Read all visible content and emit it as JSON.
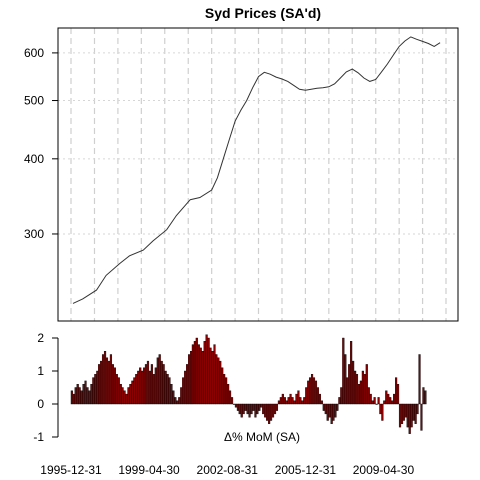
{
  "chart_data": [
    {
      "type": "line",
      "title": "Syd Prices (SA'd)",
      "xlabel": "",
      "ylabel": "",
      "y_scale": "log",
      "ylim": [
        215,
        660
      ],
      "xlim": [
        "1995-12-31",
        "2011-12-31"
      ],
      "y_ticks": [
        300,
        400,
        500,
        600
      ],
      "grid": true,
      "x_grid_dates": [
        "1995-12-31",
        "1996-12-31",
        "1997-12-31",
        "1998-12-31",
        "1999-12-31",
        "2000-12-31",
        "2001-12-31",
        "2002-12-31",
        "2003-12-31",
        "2004-12-31",
        "2005-12-31",
        "2006-12-31",
        "2007-12-31",
        "2008-12-31",
        "2009-12-31",
        "2010-12-31",
        "2011-12-31"
      ],
      "series": [
        {
          "color": "#333333",
          "points": [
            [
              "1996-01-31",
              230
            ],
            [
              "1996-06-30",
              234
            ],
            [
              "1997-01-31",
              242
            ],
            [
              "1997-06-30",
              256
            ],
            [
              "1998-01-31",
              268
            ],
            [
              "1998-06-30",
              276
            ],
            [
              "1999-01-31",
              282
            ],
            [
              "1999-06-30",
              292
            ],
            [
              "2000-01-31",
              305
            ],
            [
              "2000-06-30",
              322
            ],
            [
              "2001-01-31",
              342
            ],
            [
              "2001-06-30",
              345
            ],
            [
              "2001-12-31",
              355
            ],
            [
              "2002-03-31",
              372
            ],
            [
              "2002-06-30",
              400
            ],
            [
              "2002-09-30",
              430
            ],
            [
              "2002-12-31",
              462
            ],
            [
              "2003-03-31",
              482
            ],
            [
              "2003-06-30",
              500
            ],
            [
              "2003-09-30",
              525
            ],
            [
              "2003-12-31",
              548
            ],
            [
              "2004-03-31",
              557
            ],
            [
              "2004-06-30",
              553
            ],
            [
              "2004-09-30",
              547
            ],
            [
              "2004-12-31",
              543
            ],
            [
              "2005-03-31",
              538
            ],
            [
              "2005-06-30",
              530
            ],
            [
              "2005-09-30",
              522
            ],
            [
              "2005-12-31",
              520
            ],
            [
              "2006-03-31",
              522
            ],
            [
              "2006-06-30",
              524
            ],
            [
              "2006-09-30",
              525
            ],
            [
              "2006-12-31",
              527
            ],
            [
              "2007-03-31",
              533
            ],
            [
              "2007-06-30",
              545
            ],
            [
              "2007-09-30",
              558
            ],
            [
              "2007-12-31",
              564
            ],
            [
              "2008-03-31",
              556
            ],
            [
              "2008-06-30",
              545
            ],
            [
              "2008-09-30",
              538
            ],
            [
              "2008-12-31",
              542
            ],
            [
              "2009-03-31",
              558
            ],
            [
              "2009-06-30",
              575
            ],
            [
              "2009-09-30",
              595
            ],
            [
              "2009-12-31",
              615
            ],
            [
              "2010-03-31",
              628
            ],
            [
              "2010-06-30",
              638
            ],
            [
              "2010-09-30",
              632
            ],
            [
              "2010-12-31",
              627
            ],
            [
              "2011-03-31",
              622
            ],
            [
              "2011-06-30",
              615
            ],
            [
              "2011-09-30",
              624
            ]
          ]
        }
      ]
    },
    {
      "type": "bar",
      "title": "",
      "xlabel": "Δ% MoM (SA)",
      "ylabel": "",
      "ylim": [
        -1,
        2
      ],
      "y_ticks": [
        -1,
        0,
        1,
        2
      ],
      "x_tick_labels": [
        "1995-12-31",
        "1999-04-30",
        "2002-08-31",
        "2005-12-31",
        "2009-04-30"
      ],
      "x_tick_dates": [
        "1995-12-31",
        "1999-04-30",
        "2002-08-31",
        "2005-12-31",
        "2009-04-30"
      ],
      "bar_color": "#8b0000",
      "bar_start": "1996-01-31",
      "bar_frequency": "monthly",
      "values": [
        0.4,
        0.3,
        0.5,
        0.6,
        0.5,
        0.4,
        0.6,
        0.7,
        0.5,
        0.4,
        0.6,
        0.8,
        0.9,
        1.0,
        1.2,
        1.3,
        1.5,
        1.6,
        1.4,
        1.3,
        1.5,
        1.2,
        1.1,
        0.9,
        0.8,
        0.6,
        0.5,
        0.4,
        0.3,
        0.5,
        0.6,
        0.7,
        0.8,
        0.9,
        1.0,
        1.1,
        1.0,
        1.1,
        1.2,
        1.3,
        1.0,
        1.2,
        0.9,
        1.1,
        1.4,
        1.5,
        1.3,
        1.2,
        1.0,
        0.9,
        0.8,
        0.6,
        0.4,
        0.2,
        0.1,
        0.2,
        0.5,
        0.8,
        1.0,
        1.2,
        1.5,
        1.6,
        1.8,
        1.9,
        2.0,
        1.8,
        1.7,
        1.6,
        1.9,
        2.1,
        2.0,
        1.7,
        1.6,
        1.8,
        1.5,
        1.4,
        1.3,
        1.1,
        0.9,
        0.8,
        0.6,
        0.4,
        0.2,
        0.0,
        -0.1,
        -0.2,
        -0.3,
        -0.4,
        -0.3,
        -0.2,
        -0.3,
        -0.4,
        -0.3,
        -0.2,
        -0.4,
        -0.3,
        -0.2,
        -0.1,
        -0.3,
        -0.4,
        -0.5,
        -0.6,
        -0.5,
        -0.4,
        -0.3,
        -0.2,
        0.1,
        0.2,
        0.3,
        0.2,
        0.1,
        0.2,
        0.3,
        0.2,
        0.1,
        0.3,
        0.4,
        0.2,
        0.1,
        0.2,
        0.5,
        0.7,
        0.8,
        0.9,
        0.8,
        0.7,
        0.5,
        0.3,
        0.1,
        -0.2,
        -0.3,
        -0.5,
        -0.4,
        -0.6,
        -0.5,
        -0.4,
        -0.2,
        0.2,
        0.5,
        2.0,
        1.5,
        0.8,
        1.2,
        1.9,
        1.3,
        1.0,
        0.9,
        0.6,
        0.7,
        1.0,
        0.9,
        1.2,
        0.5,
        0.3,
        0.1,
        0.2,
        0.0,
        0.2,
        -0.3,
        -0.5,
        0.1,
        0.4,
        0.3,
        0.2,
        0.1,
        0.3,
        0.8,
        0.6,
        -0.7,
        -0.6,
        -0.5,
        -0.4,
        -0.7,
        -0.9,
        -0.7,
        -0.5,
        -0.6,
        -0.3,
        1.5,
        -0.8,
        0.5,
        0.4
      ]
    }
  ]
}
